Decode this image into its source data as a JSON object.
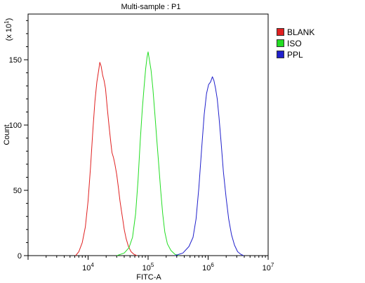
{
  "chart_data": {
    "type": "line",
    "title": "Multi-sample : P1",
    "xlabel": "FITC-A",
    "ylabel": "Count",
    "y_multiplier": "(x 10",
    "y_multiplier_exp": "1",
    "x_scale": "log",
    "xlim": [
      1000,
      10000000
    ],
    "ylim": [
      0,
      185
    ],
    "x_ticks": [
      {
        "value": 10000,
        "base": "10",
        "exp": "4"
      },
      {
        "value": 100000,
        "base": "10",
        "exp": "5"
      },
      {
        "value": 1000000,
        "base": "10",
        "exp": "6"
      },
      {
        "value": 10000000,
        "base": "10",
        "exp": "7"
      }
    ],
    "y_ticks": [
      0,
      50,
      100,
      150
    ],
    "legend_position": "top-right",
    "series": [
      {
        "name": "BLANK",
        "color": "#e02020",
        "points": [
          [
            6200,
            0
          ],
          [
            7000,
            3
          ],
          [
            8000,
            10
          ],
          [
            9000,
            22
          ],
          [
            10000,
            42
          ],
          [
            11000,
            68
          ],
          [
            12000,
            96
          ],
          [
            13000,
            118
          ],
          [
            14000,
            133
          ],
          [
            15000,
            142
          ],
          [
            15700,
            148
          ],
          [
            16500,
            145
          ],
          [
            17500,
            138
          ],
          [
            18500,
            134
          ],
          [
            19500,
            128
          ],
          [
            21000,
            112
          ],
          [
            22500,
            98
          ],
          [
            24000,
            86
          ],
          [
            25000,
            79
          ],
          [
            26500,
            75
          ],
          [
            28000,
            70
          ],
          [
            30000,
            62
          ],
          [
            32000,
            52
          ],
          [
            34000,
            42
          ],
          [
            36000,
            34
          ],
          [
            38000,
            27
          ],
          [
            40000,
            20
          ],
          [
            43000,
            13
          ],
          [
            47000,
            7
          ],
          [
            52000,
            3
          ],
          [
            58000,
            1
          ],
          [
            65000,
            0
          ]
        ]
      },
      {
        "name": "ISO",
        "color": "#22dd22",
        "points": [
          [
            30000,
            0
          ],
          [
            40000,
            2
          ],
          [
            48000,
            6
          ],
          [
            55000,
            14
          ],
          [
            62000,
            32
          ],
          [
            68000,
            58
          ],
          [
            74000,
            88
          ],
          [
            80000,
            112
          ],
          [
            86000,
            130
          ],
          [
            91000,
            143
          ],
          [
            96000,
            152
          ],
          [
            100000,
            156
          ],
          [
            105000,
            150
          ],
          [
            112000,
            142
          ],
          [
            120000,
            128
          ],
          [
            130000,
            108
          ],
          [
            140000,
            88
          ],
          [
            150000,
            70
          ],
          [
            162000,
            50
          ],
          [
            175000,
            32
          ],
          [
            190000,
            18
          ],
          [
            210000,
            9
          ],
          [
            240000,
            4
          ],
          [
            280000,
            1
          ],
          [
            330000,
            0
          ]
        ]
      },
      {
        "name": "PPL",
        "color": "#2020cc",
        "points": [
          [
            280000,
            0
          ],
          [
            380000,
            2
          ],
          [
            480000,
            7
          ],
          [
            560000,
            14
          ],
          [
            630000,
            28
          ],
          [
            700000,
            52
          ],
          [
            780000,
            82
          ],
          [
            860000,
            108
          ],
          [
            940000,
            124
          ],
          [
            1020000,
            131
          ],
          [
            1100000,
            133
          ],
          [
            1180000,
            137
          ],
          [
            1250000,
            134
          ],
          [
            1330000,
            128
          ],
          [
            1420000,
            120
          ],
          [
            1520000,
            106
          ],
          [
            1650000,
            86
          ],
          [
            1800000,
            64
          ],
          [
            2000000,
            44
          ],
          [
            2200000,
            28
          ],
          [
            2450000,
            16
          ],
          [
            2750000,
            8
          ],
          [
            3100000,
            3
          ],
          [
            3500000,
            1
          ],
          [
            3900000,
            0
          ]
        ]
      }
    ]
  },
  "legend": {
    "items": [
      {
        "label": "BLANK",
        "color": "#e02020"
      },
      {
        "label": "ISO",
        "color": "#22dd22"
      },
      {
        "label": "PPL",
        "color": "#2020cc"
      }
    ]
  }
}
